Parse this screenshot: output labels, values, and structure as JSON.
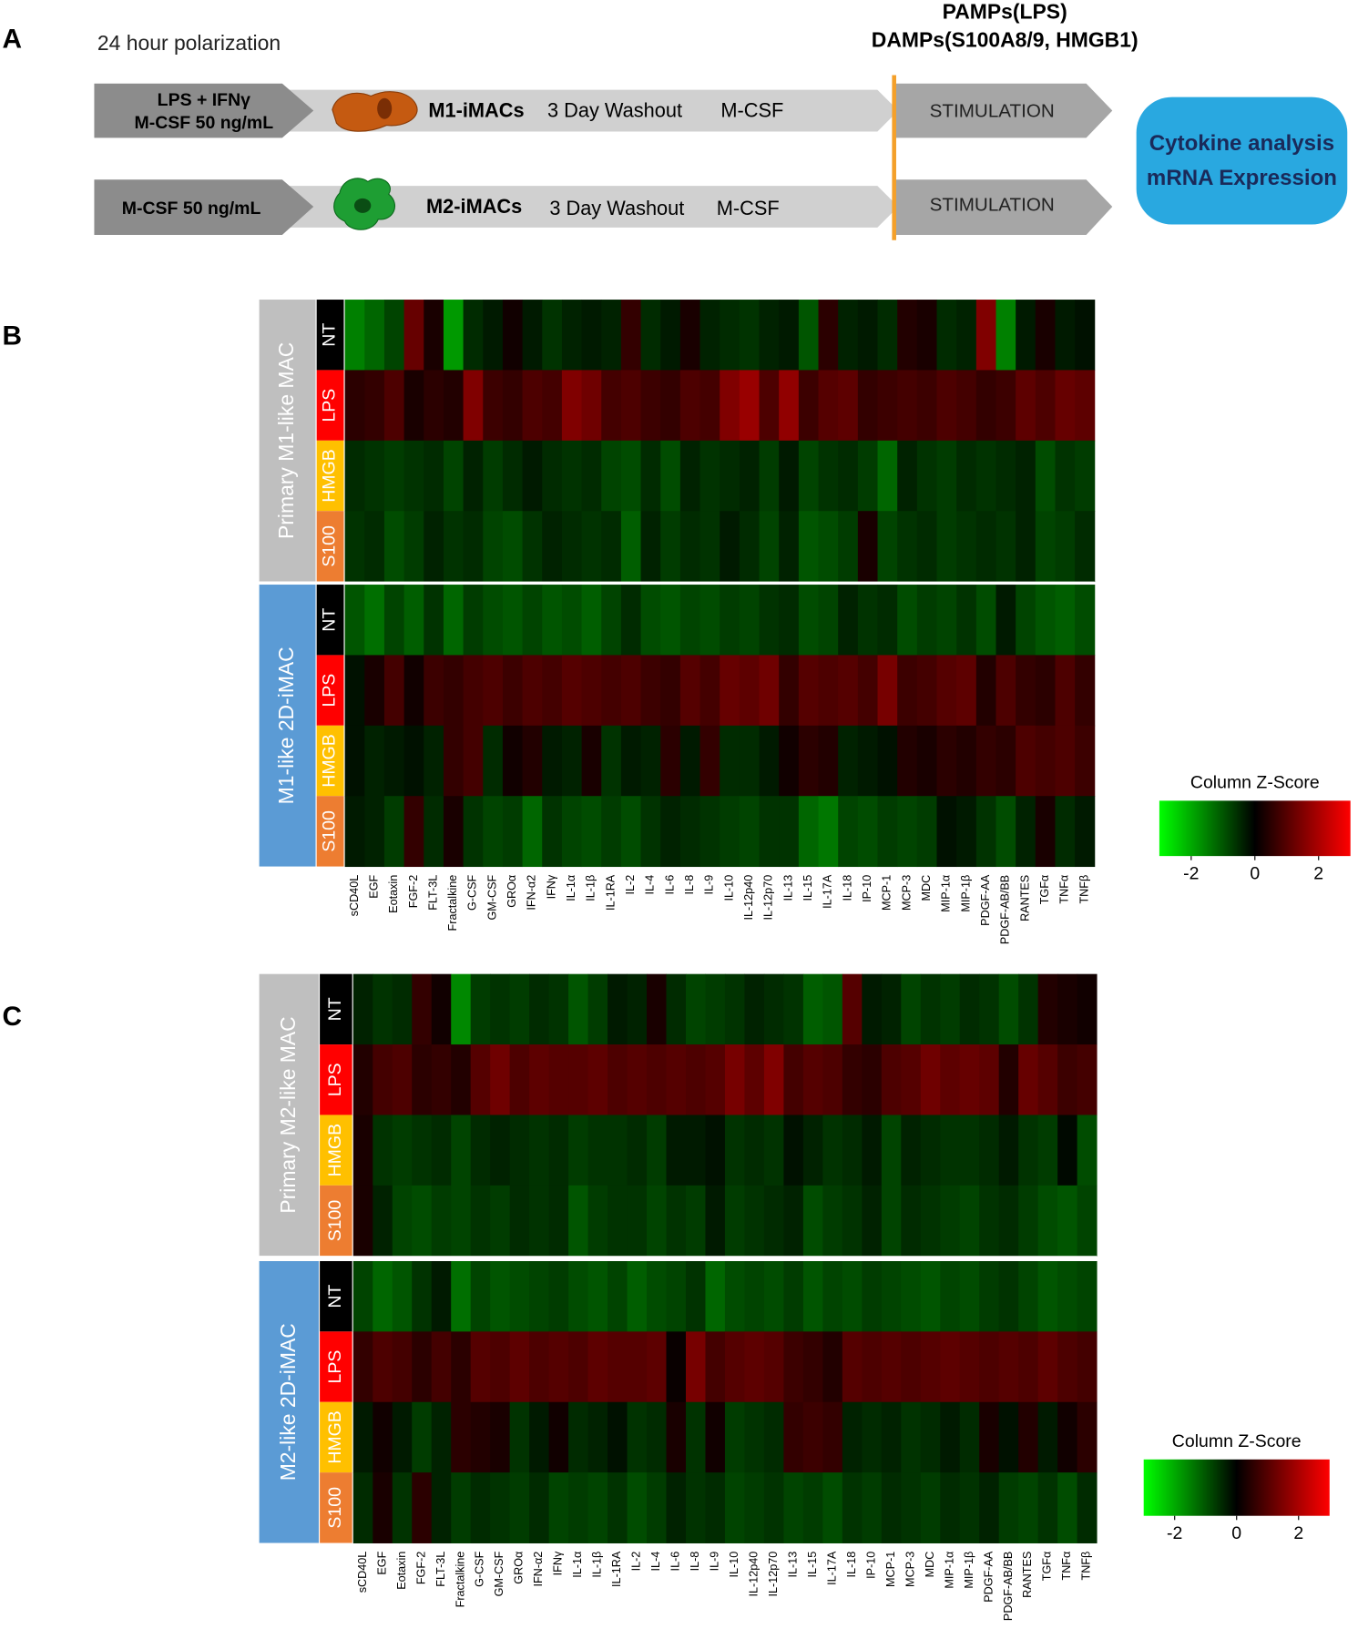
{
  "panel_a": {
    "letter": "A",
    "timeline_label": "24 hour polarization",
    "stimuli": [
      "PAMPs(LPS)",
      "DAMPs(S100A8/9, HMGB1)"
    ],
    "rows": [
      {
        "treatment": [
          "LPS + IFNγ",
          "M-CSF 50 ng/mL"
        ],
        "cell": "M1-iMACs",
        "washout": "3 Day Washout",
        "medium": "M-CSF",
        "step": "STIMULATION"
      },
      {
        "treatment": [
          "M-CSF 50 ng/mL"
        ],
        "cell": "M2-iMACs",
        "washout": "3 Day Washout",
        "medium": "M-CSF",
        "step": "STIMULATION"
      }
    ],
    "readout": [
      "Cytokine analysis",
      "mRNA Expression"
    ]
  },
  "chart_data": [
    {
      "type": "heatmap",
      "panel": "B",
      "columns": [
        "sCD40L",
        "EGF",
        "Eotaxin",
        "FGF-2",
        "FLT-3L",
        "Fractalkine",
        "G-CSF",
        "GM-CSF",
        "GROα",
        "IFN-α2",
        "IFNγ",
        "IL-1α",
        "IL-1β",
        "IL-1RA",
        "IL-2",
        "IL-4",
        "IL-6",
        "IL-8",
        "IL-9",
        "IL-10",
        "IL-12p40",
        "IL-12p70",
        "IL-13",
        "IL-15",
        "IL-17A",
        "IL-18",
        "IP-10",
        "MCP-1",
        "MCP-3",
        "MDC",
        "MIP-1α",
        "MIP-1β",
        "PDGF-AA",
        "PDGF-AB/BB",
        "RANTES",
        "TGFα",
        "TNFα",
        "TNFβ"
      ],
      "row_groups": [
        {
          "label": "Primary M1-like MAC",
          "color": "#bfbfbf",
          "conditions": [
            {
              "label": "NT",
              "color": "#000000",
              "values": [
                -1.5,
                -1.2,
                -0.8,
                1.2,
                0.3,
                -1.8,
                -0.5,
                -0.3,
                0.2,
                -0.3,
                -0.6,
                -0.4,
                -0.3,
                -0.4,
                0.6,
                -0.5,
                -0.3,
                0.3,
                -0.4,
                -0.5,
                -0.6,
                -0.4,
                -0.3,
                -1.0,
                0.5,
                -0.4,
                -0.3,
                -0.5,
                0.4,
                0.3,
                -0.5,
                -0.4,
                1.5,
                -1.5,
                -0.3,
                0.3,
                -0.3,
                -0.2
              ]
            },
            {
              "label": "LPS",
              "color": "#ff0000",
              "values": [
                0.5,
                0.6,
                0.9,
                0.3,
                0.5,
                0.4,
                1.5,
                0.7,
                0.6,
                0.9,
                0.8,
                1.5,
                1.3,
                0.8,
                0.9,
                0.7,
                0.6,
                0.9,
                0.8,
                1.5,
                1.8,
                0.9,
                1.7,
                0.7,
                1.0,
                1.1,
                0.6,
                0.7,
                0.8,
                0.7,
                0.9,
                0.8,
                0.6,
                0.7,
                1.1,
                0.9,
                1.2,
                1.1
              ]
            },
            {
              "label": "HMGB",
              "color": "#ffc000",
              "values": [
                -0.5,
                -0.6,
                -0.7,
                -0.6,
                -0.5,
                -0.8,
                -0.4,
                -0.7,
                -0.5,
                -0.3,
                -0.5,
                -0.6,
                -0.5,
                -0.8,
                -0.9,
                -0.5,
                -0.9,
                -0.4,
                -0.6,
                -0.5,
                -0.4,
                -0.7,
                -0.3,
                -0.8,
                -0.6,
                -0.5,
                -0.7,
                -1.2,
                -0.4,
                -0.6,
                -0.7,
                -0.5,
                -0.6,
                -0.5,
                -0.4,
                -0.9,
                -0.6,
                -0.7
              ]
            },
            {
              "label": "S100",
              "color": "#ed7d31",
              "values": [
                -0.6,
                -0.5,
                -0.9,
                -0.7,
                -0.4,
                -0.6,
                -0.5,
                -0.8,
                -0.9,
                -0.6,
                -0.4,
                -0.5,
                -0.6,
                -0.5,
                -1.1,
                -0.4,
                -0.7,
                -0.5,
                -0.6,
                -0.3,
                -0.5,
                -0.8,
                -0.4,
                -1.0,
                -0.9,
                -0.7,
                0.3,
                -0.8,
                -0.6,
                -0.5,
                -0.7,
                -0.6,
                -0.5,
                -0.6,
                -0.4,
                -0.8,
                -0.7,
                -0.5
              ]
            }
          ]
        },
        {
          "label": "M1-like 2D-iMAC",
          "color": "#5b9bd5",
          "conditions": [
            {
              "label": "NT",
              "color": "#000000",
              "values": [
                -1.0,
                -1.3,
                -0.8,
                -1.1,
                -0.6,
                -1.2,
                -0.7,
                -0.9,
                -1.0,
                -0.8,
                -1.0,
                -0.9,
                -1.1,
                -0.8,
                -0.5,
                -0.9,
                -1.0,
                -0.8,
                -0.9,
                -0.7,
                -0.8,
                -0.6,
                -0.5,
                -0.9,
                -0.8,
                -0.4,
                -0.6,
                -0.5,
                -0.9,
                -0.7,
                -0.8,
                -0.6,
                -0.9,
                -0.3,
                -0.8,
                -1.0,
                -1.1,
                -0.9
              ]
            },
            {
              "label": "LPS",
              "color": "#ff0000",
              "values": [
                -0.2,
                0.3,
                0.8,
                0.2,
                0.7,
                0.6,
                0.8,
                0.9,
                0.7,
                0.9,
                0.8,
                1.0,
                0.9,
                0.8,
                0.9,
                0.7,
                0.6,
                1.0,
                0.8,
                1.2,
                1.1,
                1.3,
                0.6,
                1.0,
                0.9,
                1.0,
                0.8,
                1.4,
                0.7,
                0.8,
                1.0,
                1.1,
                0.4,
                0.9,
                0.6,
                0.5,
                0.9,
                0.6
              ]
            },
            {
              "label": "HMGB",
              "color": "#ffc000",
              "values": [
                -0.2,
                -0.4,
                -0.3,
                -0.2,
                -0.4,
                0.6,
                0.8,
                -0.5,
                0.2,
                0.4,
                -0.3,
                -0.4,
                0.3,
                -0.6,
                -0.3,
                -0.4,
                0.5,
                -0.3,
                0.6,
                -0.5,
                -0.5,
                -0.3,
                0.2,
                0.5,
                0.4,
                -0.4,
                -0.3,
                -0.2,
                0.4,
                0.3,
                0.5,
                0.4,
                0.6,
                0.5,
                0.9,
                0.8,
                0.9,
                0.7
              ]
            },
            {
              "label": "S100",
              "color": "#ed7d31",
              "values": [
                -0.3,
                -0.4,
                -0.7,
                0.6,
                -0.5,
                0.3,
                -0.6,
                -0.8,
                -0.7,
                -1.2,
                -0.6,
                -0.8,
                -0.9,
                -0.7,
                -0.9,
                -0.6,
                -0.4,
                -0.5,
                -0.6,
                -0.7,
                -0.8,
                -0.6,
                -0.6,
                -1.2,
                -1.4,
                -0.8,
                -0.9,
                -0.7,
                -0.8,
                -0.7,
                -0.2,
                -0.3,
                -0.6,
                -0.9,
                -0.4,
                0.3,
                -0.5,
                -0.3
              ]
            }
          ]
        }
      ],
      "colorbar_title": "Column Z-Score",
      "colormap": [
        "#00ff00",
        "#000000",
        "#ff0000"
      ],
      "zlim": [
        -3,
        3
      ],
      "zticks": [
        -2,
        0,
        2
      ]
    },
    {
      "type": "heatmap",
      "panel": "C",
      "columns": [
        "sCD40L",
        "EGF",
        "Eotaxin",
        "FGF-2",
        "FLT-3L",
        "Fractalkine",
        "G-CSF",
        "GM-CSF",
        "GROα",
        "IFN-α2",
        "IFNγ",
        "IL-1α",
        "IL-1β",
        "IL-1RA",
        "IL-2",
        "IL-4",
        "IL-6",
        "IL-8",
        "IL-9",
        "IL-10",
        "IL-12p40",
        "IL-12p70",
        "IL-13",
        "IL-15",
        "IL-17A",
        "IL-18",
        "IP-10",
        "MCP-1",
        "MCP-3",
        "MDC",
        "MIP-1α",
        "MIP-1β",
        "PDGF-AA",
        "PDGF-AB/BB",
        "RANTES",
        "TGFα",
        "TNFα",
        "TNFβ"
      ],
      "row_groups": [
        {
          "label": "Primary M2-like MAC",
          "color": "#bfbfbf",
          "conditions": [
            {
              "label": "NT",
              "color": "#000000",
              "values": [
                -0.4,
                -0.6,
                -0.5,
                0.6,
                0.2,
                -1.6,
                -0.7,
                -0.6,
                -0.7,
                -0.5,
                -0.6,
                -1.0,
                -0.7,
                -0.3,
                -0.4,
                0.3,
                -0.5,
                -0.8,
                -0.7,
                -0.6,
                -0.4,
                -0.5,
                -0.6,
                -1.1,
                -1.0,
                1.0,
                -0.3,
                -0.4,
                -0.8,
                -0.6,
                -0.7,
                -0.5,
                -0.6,
                -0.9,
                -0.6,
                0.4,
                0.3,
                0.2
              ]
            },
            {
              "label": "LPS",
              "color": "#ff0000",
              "values": [
                0.4,
                0.8,
                0.9,
                0.5,
                0.6,
                0.4,
                1.0,
                1.3,
                0.9,
                1.1,
                1.0,
                1.0,
                1.1,
                0.9,
                1.0,
                0.9,
                1.0,
                0.9,
                1.0,
                1.4,
                1.1,
                1.5,
                0.8,
                1.0,
                0.9,
                0.6,
                0.5,
                0.9,
                1.0,
                1.3,
                1.1,
                1.2,
                1.1,
                0.4,
                1.2,
                1.0,
                0.7,
                0.8
              ]
            },
            {
              "label": "HMGB",
              "color": "#ffc000",
              "values": [
                0.3,
                -0.6,
                -0.7,
                -0.6,
                -0.5,
                -0.8,
                -0.5,
                -0.4,
                -0.5,
                -0.6,
                -0.5,
                -0.7,
                -0.6,
                -0.6,
                -0.5,
                -0.7,
                -0.3,
                -0.3,
                -0.2,
                -0.6,
                -0.5,
                -0.6,
                -0.2,
                -0.4,
                -0.6,
                -0.5,
                -0.3,
                -0.8,
                -0.4,
                -0.5,
                -0.6,
                -0.6,
                -0.5,
                -0.3,
                -0.6,
                -0.7,
                -0.1,
                -0.9
              ]
            },
            {
              "label": "S100",
              "color": "#ed7d31",
              "values": [
                0.3,
                -0.4,
                -0.8,
                -0.9,
                -0.7,
                -0.8,
                -0.6,
                -0.7,
                -0.5,
                -0.6,
                -0.5,
                -1.0,
                -0.7,
                -0.6,
                -0.6,
                -0.8,
                -0.6,
                -0.7,
                -0.3,
                -0.7,
                -0.6,
                -0.5,
                -0.4,
                -0.9,
                -0.7,
                -0.6,
                -0.4,
                -0.8,
                -0.5,
                -0.6,
                -0.7,
                -0.8,
                -0.6,
                -0.5,
                -0.7,
                -0.9,
                -1.0,
                -0.8
              ]
            }
          ]
        },
        {
          "label": "M2-like 2D-iMAC",
          "color": "#5b9bd5",
          "conditions": [
            {
              "label": "NT",
              "color": "#000000",
              "values": [
                -0.8,
                -1.2,
                -1.0,
                -0.6,
                -0.3,
                -1.3,
                -0.8,
                -1.0,
                -0.9,
                -0.8,
                -0.7,
                -0.9,
                -1.0,
                -0.8,
                -1.1,
                -0.9,
                -0.8,
                -0.6,
                -1.2,
                -0.9,
                -0.8,
                -0.9,
                -0.7,
                -1.0,
                -0.8,
                -0.9,
                -0.7,
                -0.8,
                -0.9,
                -1.0,
                -0.8,
                -0.9,
                -0.7,
                -0.6,
                -0.8,
                -1.0,
                -0.9,
                -0.8
              ]
            },
            {
              "label": "LPS",
              "color": "#ff0000",
              "values": [
                0.6,
                0.9,
                0.8,
                0.5,
                0.8,
                0.5,
                1.0,
                0.9,
                1.1,
                0.9,
                1.0,
                0.9,
                1.1,
                1.0,
                1.0,
                1.1,
                0.1,
                1.4,
                0.8,
                1.0,
                1.1,
                1.0,
                0.7,
                0.6,
                0.4,
                1.0,
                0.9,
                1.0,
                0.9,
                1.0,
                1.1,
                1.0,
                0.9,
                1.0,
                0.9,
                1.1,
                0.9,
                0.8
              ]
            },
            {
              "label": "HMGB",
              "color": "#ffc000",
              "values": [
                -0.3,
                0.2,
                -0.3,
                -0.7,
                -0.4,
                0.5,
                0.4,
                0.3,
                -0.6,
                -0.3,
                0.2,
                -0.5,
                -0.4,
                -0.2,
                -0.6,
                -0.5,
                0.3,
                -0.6,
                0.2,
                -0.7,
                -0.6,
                -0.5,
                0.6,
                0.7,
                0.6,
                -0.4,
                -0.5,
                -0.4,
                -0.6,
                -0.5,
                -0.3,
                -0.5,
                0.3,
                -0.2,
                0.4,
                -0.3,
                0.2,
                0.5
              ]
            },
            {
              "label": "S100",
              "color": "#ed7d31",
              "values": [
                -0.5,
                0.3,
                -0.6,
                0.5,
                -0.4,
                -0.7,
                -0.5,
                -0.6,
                -0.7,
                -0.5,
                -0.8,
                -0.7,
                -0.8,
                -0.6,
                -0.9,
                -0.7,
                -0.4,
                -0.6,
                -0.5,
                -0.8,
                -0.7,
                -0.6,
                -0.8,
                -0.7,
                -0.9,
                -0.6,
                -0.7,
                -0.5,
                -0.6,
                -0.7,
                -0.5,
                -0.6,
                -0.4,
                -0.7,
                -0.8,
                -0.6,
                -0.9,
                -0.5
              ]
            }
          ]
        }
      ],
      "colorbar_title": "Column Z-Score",
      "colormap": [
        "#00ff00",
        "#000000",
        "#ff0000"
      ],
      "zlim": [
        -3,
        3
      ],
      "zticks": [
        -2,
        0,
        2
      ]
    }
  ]
}
